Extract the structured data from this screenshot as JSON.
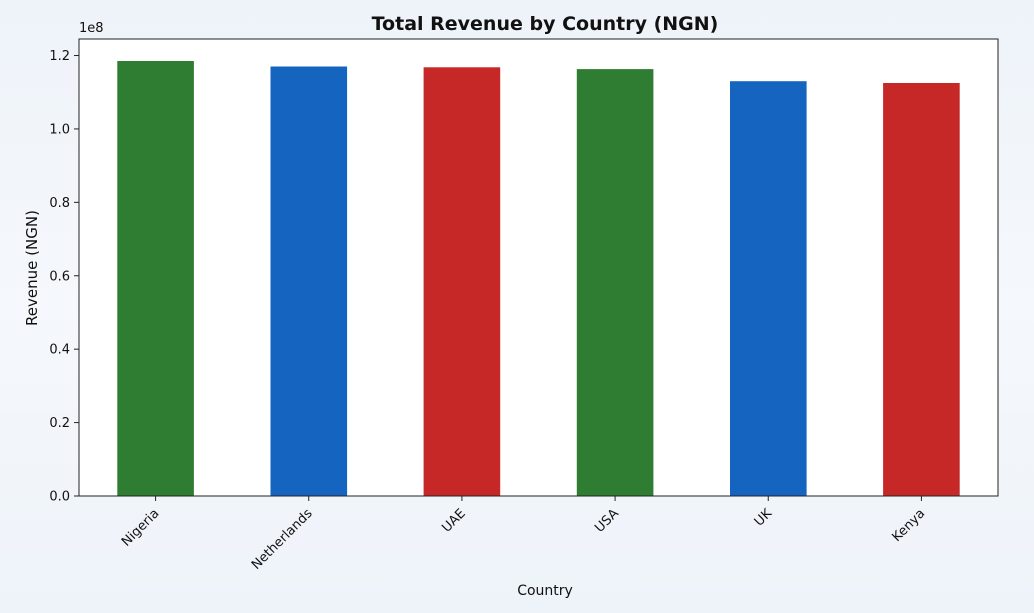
{
  "chart_data": {
    "type": "bar",
    "title": "Total Revenue by Country (NGN)",
    "xlabel": "Country",
    "ylabel": "Revenue (NGN)",
    "offset_label": "1e8",
    "categories": [
      "Nigeria",
      "Netherlands",
      "UAE",
      "USA",
      "UK",
      "Kenya"
    ],
    "values": [
      118500000,
      117000000,
      116800000,
      116300000,
      113000000,
      112500000
    ],
    "bar_colors": [
      "#2e7d32",
      "#1565c0",
      "#c62828",
      "#2e7d32",
      "#1565c0",
      "#c62828"
    ],
    "ylim": [
      0,
      124500000
    ],
    "yticks": [
      0,
      20000000,
      40000000,
      60000000,
      80000000,
      100000000,
      120000000
    ],
    "ytick_labels": [
      "0.0",
      "0.2",
      "0.4",
      "0.6",
      "0.8",
      "1.0",
      "1.2"
    ],
    "grid": false,
    "legend": "none"
  }
}
